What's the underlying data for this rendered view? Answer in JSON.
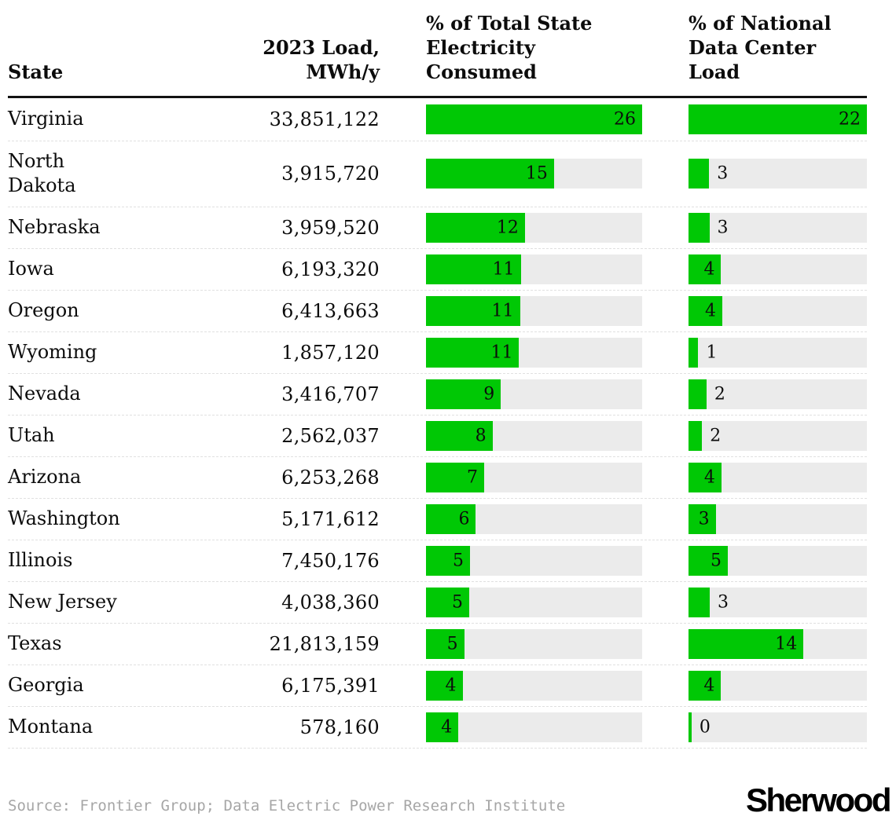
{
  "header": {
    "state": "State",
    "load": "2023 Load, MWh/y",
    "state_pct": "% of Total State\nElectricity\nConsumed",
    "national_pct": "% of National\nData Center\nLoad"
  },
  "footer": {
    "source": "Source: Frontier Group; Data Electric Power Research Institute",
    "logo": "Sherwood"
  },
  "colors": {
    "bar_green": "#00C805",
    "track_gray": "#EBEBEB",
    "header_rule": "#121212",
    "row_divider": "#E0E0E0",
    "source_gray": "#A6A6A6"
  },
  "chart_data": {
    "type": "bar",
    "title": "",
    "columns": [
      "State",
      "2023 Load, MWh/y",
      "% of Total State Electricity Consumed",
      "% of National Data Center Load"
    ],
    "categories": [
      "Virginia",
      "North Dakota",
      "Nebraska",
      "Iowa",
      "Oregon",
      "Wyoming",
      "Nevada",
      "Utah",
      "Arizona",
      "Washington",
      "Illinois",
      "New Jersey",
      "Texas",
      "Georgia",
      "Montana"
    ],
    "series": [
      {
        "name": "2023 Load, MWh/y",
        "values": [
          33851122,
          3915720,
          3959520,
          6193320,
          6413663,
          1857120,
          3416707,
          2562037,
          6253268,
          5171612,
          7450176,
          4038360,
          21813159,
          6175391,
          578160
        ]
      },
      {
        "name": "% of Total State Electricity Consumed",
        "values": [
          26,
          15,
          12,
          11,
          11,
          11,
          9,
          8,
          7,
          6,
          5,
          5,
          5,
          4,
          4
        ]
      },
      {
        "name": "% of National Data Center Load",
        "values": [
          22,
          3,
          3,
          4,
          4,
          1,
          2,
          2,
          4,
          3,
          5,
          3,
          14,
          4,
          0
        ]
      }
    ],
    "state_pct_axis": [
      0,
      26
    ],
    "national_pct_axis": [
      0,
      22
    ],
    "grid": false,
    "legend": false,
    "bar_labels": "inside-right when bar fits label, otherwise outside-right"
  },
  "rows": [
    {
      "state": "Virginia",
      "load": "33,851,122",
      "sp": {
        "label": "26",
        "value": 26.0
      },
      "np": {
        "label": "22",
        "value": 22.0
      }
    },
    {
      "state": "North\nDakota",
      "load": "3,915,720",
      "sp": {
        "label": "15",
        "value": 15.4
      },
      "np": {
        "label": "3",
        "value": 2.54
      },
      "two_line": true
    },
    {
      "state": "Nebraska",
      "load": "3,959,520",
      "sp": {
        "label": "12",
        "value": 11.9
      },
      "np": {
        "label": "3",
        "value": 2.57
      }
    },
    {
      "state": "Iowa",
      "load": "6,193,320",
      "sp": {
        "label": "11",
        "value": 11.4
      },
      "np": {
        "label": "4",
        "value": 4.02
      }
    },
    {
      "state": "Oregon",
      "load": "6,413,663",
      "sp": {
        "label": "11",
        "value": 11.3
      },
      "np": {
        "label": "4",
        "value": 4.17
      }
    },
    {
      "state": "Wyoming",
      "load": "1,857,120",
      "sp": {
        "label": "11",
        "value": 11.2
      },
      "np": {
        "label": "1",
        "value": 1.21
      }
    },
    {
      "state": "Nevada",
      "load": "3,416,707",
      "sp": {
        "label": "9",
        "value": 9.0
      },
      "np": {
        "label": "2",
        "value": 2.22
      }
    },
    {
      "state": "Utah",
      "load": "2,562,037",
      "sp": {
        "label": "8",
        "value": 8.0
      },
      "np": {
        "label": "2",
        "value": 1.67
      }
    },
    {
      "state": "Arizona",
      "load": "6,253,268",
      "sp": {
        "label": "7",
        "value": 7.0
      },
      "np": {
        "label": "4",
        "value": 4.06
      }
    },
    {
      "state": "Washington",
      "load": "5,171,612",
      "sp": {
        "label": "6",
        "value": 6.0
      },
      "np": {
        "label": "3",
        "value": 3.36
      }
    },
    {
      "state": "Illinois",
      "load": "7,450,176",
      "sp": {
        "label": "5",
        "value": 5.3
      },
      "np": {
        "label": "5",
        "value": 4.84
      }
    },
    {
      "state": "New Jersey",
      "load": "4,038,360",
      "sp": {
        "label": "5",
        "value": 5.2
      },
      "np": {
        "label": "3",
        "value": 2.62
      }
    },
    {
      "state": "Texas",
      "load": "21,813,159",
      "sp": {
        "label": "5",
        "value": 4.6
      },
      "np": {
        "label": "14",
        "value": 14.18
      }
    },
    {
      "state": "Georgia",
      "load": "6,175,391",
      "sp": {
        "label": "4",
        "value": 4.4
      },
      "np": {
        "label": "4",
        "value": 4.01
      }
    },
    {
      "state": "Montana",
      "load": "578,160",
      "sp": {
        "label": "4",
        "value": 3.9
      },
      "np": {
        "label": "0",
        "value": 0.38
      }
    }
  ]
}
